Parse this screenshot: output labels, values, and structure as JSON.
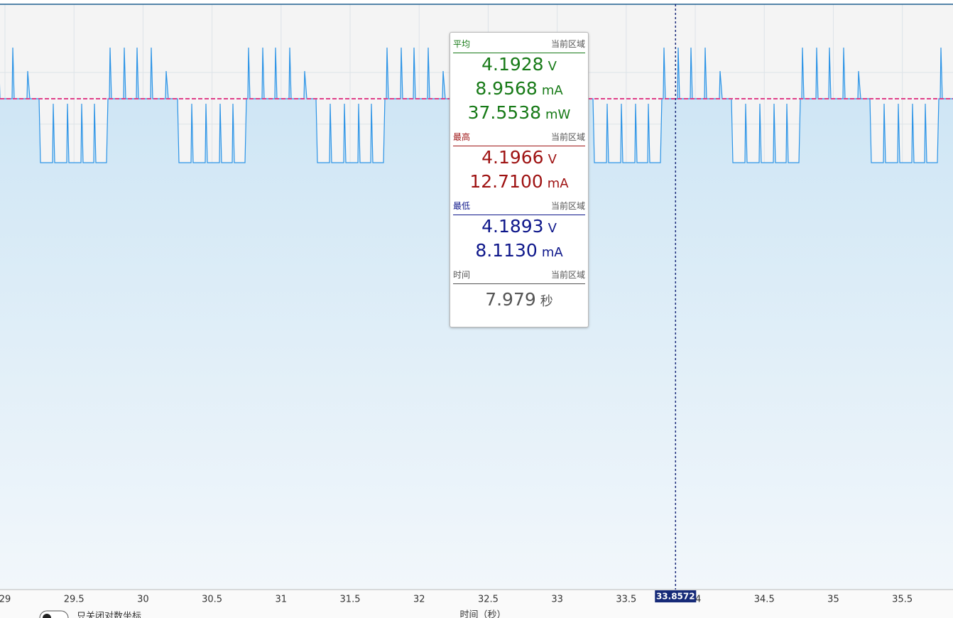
{
  "chart": {
    "xlim": [
      28.964,
      35.867
    ],
    "xticks": [
      29,
      29.5,
      30,
      30.5,
      31,
      31.5,
      32,
      32.5,
      33,
      33.5,
      34,
      34.5,
      35,
      35.5
    ],
    "cursor": 33.8572,
    "x_label": "时间（秒）"
  },
  "panel": {
    "sections": [
      {
        "title": "平均",
        "scope": "当前区域",
        "color": "#177a17",
        "readings": [
          {
            "value": "4.1928",
            "unit": "V"
          },
          {
            "value": "8.9568",
            "unit": "mA"
          },
          {
            "value": "37.5538",
            "unit": "mW"
          }
        ]
      },
      {
        "title": "最高",
        "scope": "当前区域",
        "color": "#9e1212",
        "readings": [
          {
            "value": "4.1966",
            "unit": "V"
          },
          {
            "value": "12.7100",
            "unit": "mA"
          }
        ]
      },
      {
        "title": "最低",
        "scope": "当前区域",
        "color": "#0d168a",
        "readings": [
          {
            "value": "4.1893",
            "unit": "V"
          },
          {
            "value": "8.1130",
            "unit": "mA"
          }
        ]
      },
      {
        "title": "时间",
        "scope": "当前区域",
        "color": "#555555",
        "readings": [
          {
            "value": "7.979",
            "unit": "秒"
          }
        ]
      }
    ]
  },
  "footer": {
    "toggle_label": "只关闭对数坐标"
  }
}
